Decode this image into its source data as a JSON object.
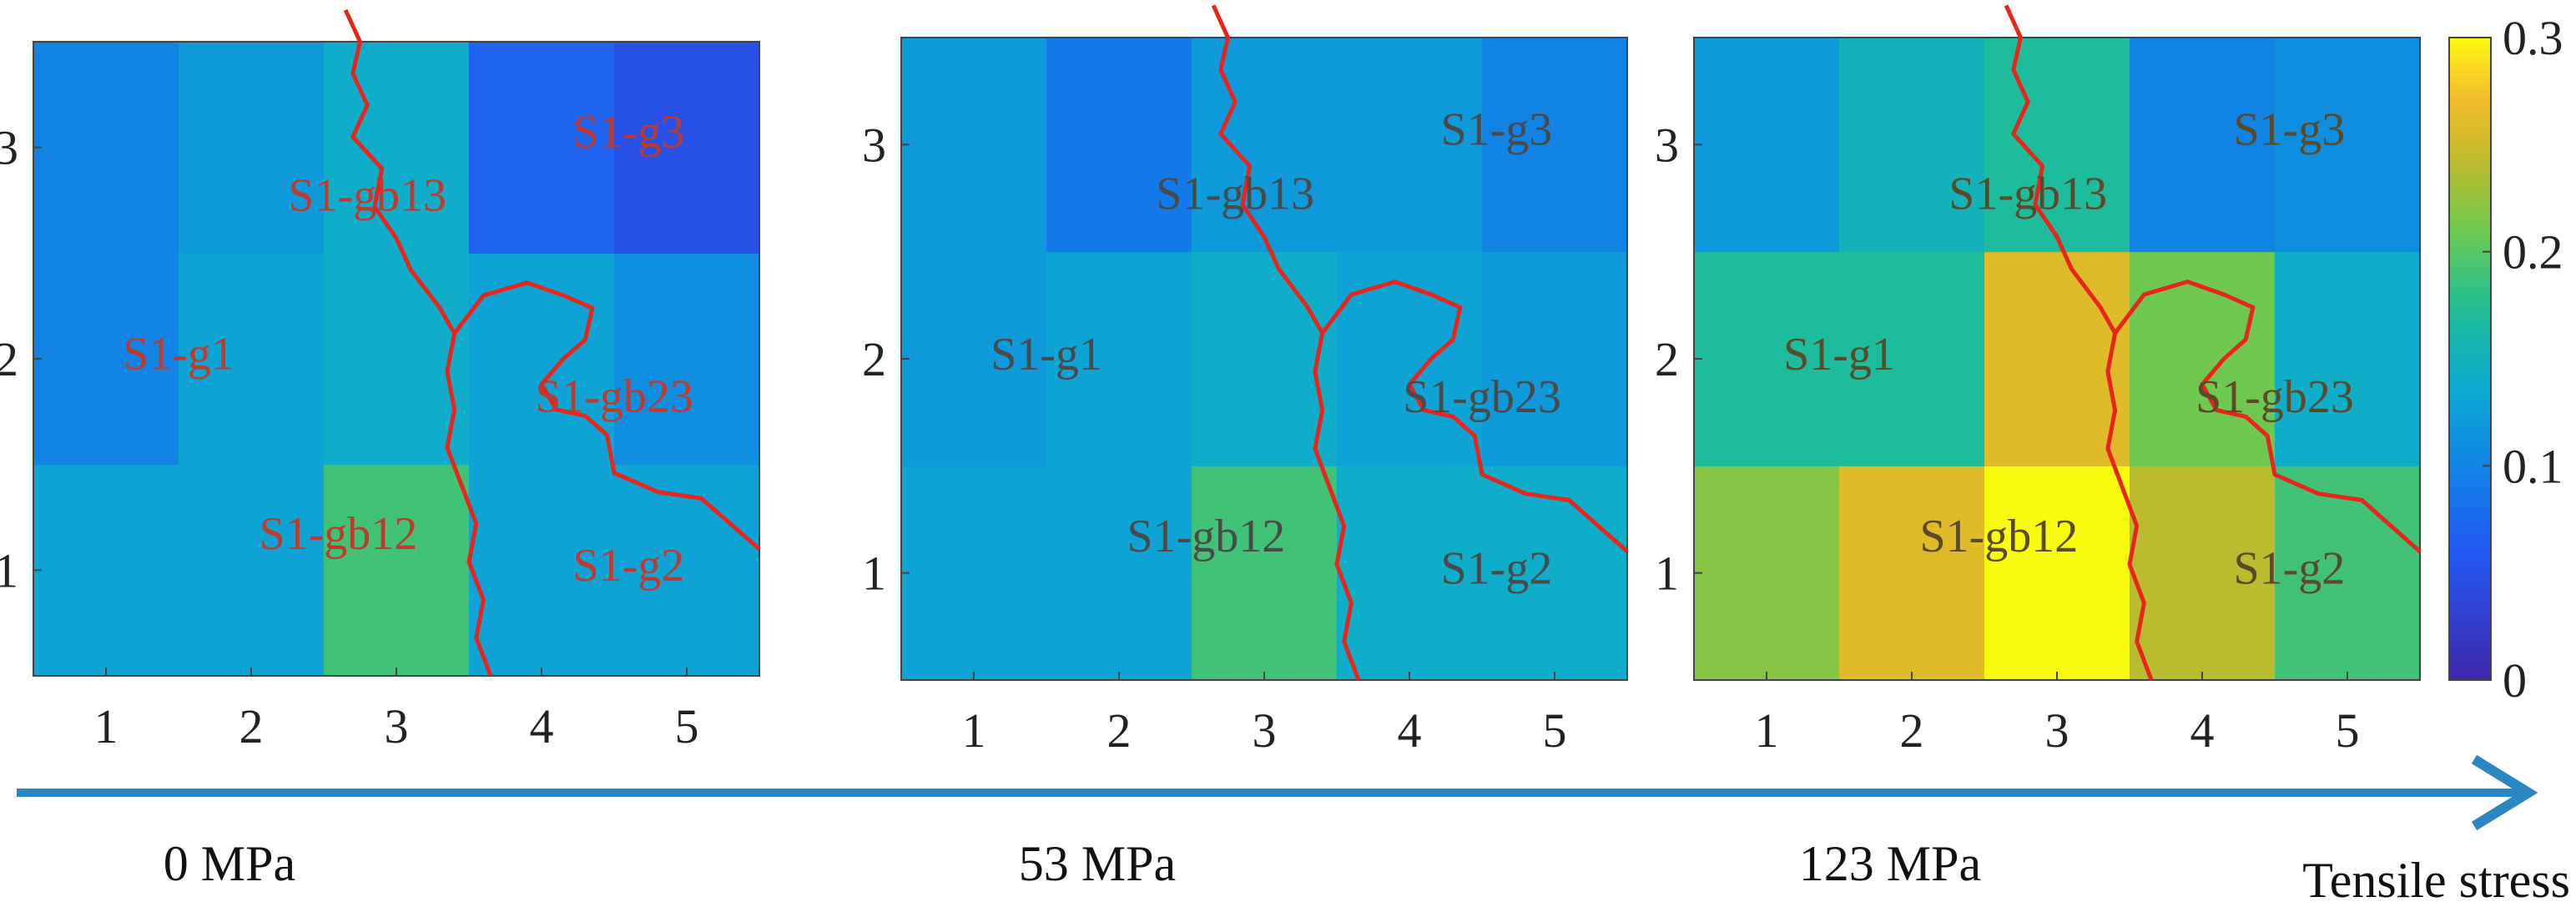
{
  "chart_data": [
    {
      "type": "heatmap",
      "x": [
        1,
        2,
        3,
        4,
        5
      ],
      "y": [
        1,
        2,
        3
      ],
      "values": [
        [
          0.13,
          0.13,
          0.19,
          0.13,
          0.13
        ],
        [
          0.1,
          0.13,
          0.14,
          0.13,
          0.11
        ],
        [
          0.1,
          0.12,
          0.14,
          0.07,
          0.05
        ]
      ],
      "labels": [
        "S1-gb13",
        "S1-g3",
        "S1-g1",
        "S1-gb23",
        "S1-gb12",
        "S1-g2"
      ],
      "label_color": "#c0392b",
      "stress_label": "0 MPa"
    },
    {
      "type": "heatmap",
      "x": [
        1,
        2,
        3,
        4,
        5
      ],
      "y": [
        1,
        2,
        3
      ],
      "values": [
        [
          0.13,
          0.13,
          0.19,
          0.14,
          0.14
        ],
        [
          0.12,
          0.13,
          0.14,
          0.13,
          0.12
        ],
        [
          0.12,
          0.09,
          0.12,
          0.12,
          0.1
        ]
      ],
      "labels": [
        "S1-gb13",
        "S1-g3",
        "S1-g1",
        "S1-gb23",
        "S1-gb12",
        "S1-g2"
      ],
      "label_color": "#4a4a4a",
      "stress_label": "53 MPa"
    },
    {
      "type": "heatmap",
      "x": [
        1,
        2,
        3,
        4,
        5
      ],
      "y": [
        1,
        2,
        3
      ],
      "values": [
        [
          0.22,
          0.26,
          0.3,
          0.24,
          0.19
        ],
        [
          0.17,
          0.17,
          0.26,
          0.21,
          0.14
        ],
        [
          0.12,
          0.15,
          0.17,
          0.1,
          0.11
        ]
      ],
      "labels": [
        "S1-gb13",
        "S1-g3",
        "S1-g1",
        "S1-gb23",
        "S1-gb12",
        "S1-g2"
      ],
      "label_color": "#5a4a2a",
      "stress_label": "123 MPa"
    }
  ],
  "colorbar": {
    "min": 0,
    "max": 0.3,
    "ticks": [
      "0.3",
      "0.2",
      "0.1",
      "0"
    ]
  },
  "arrow_label": "Tensile stress",
  "colors": {
    "arrow": "#2a86c0",
    "crack": "#e8241c"
  }
}
